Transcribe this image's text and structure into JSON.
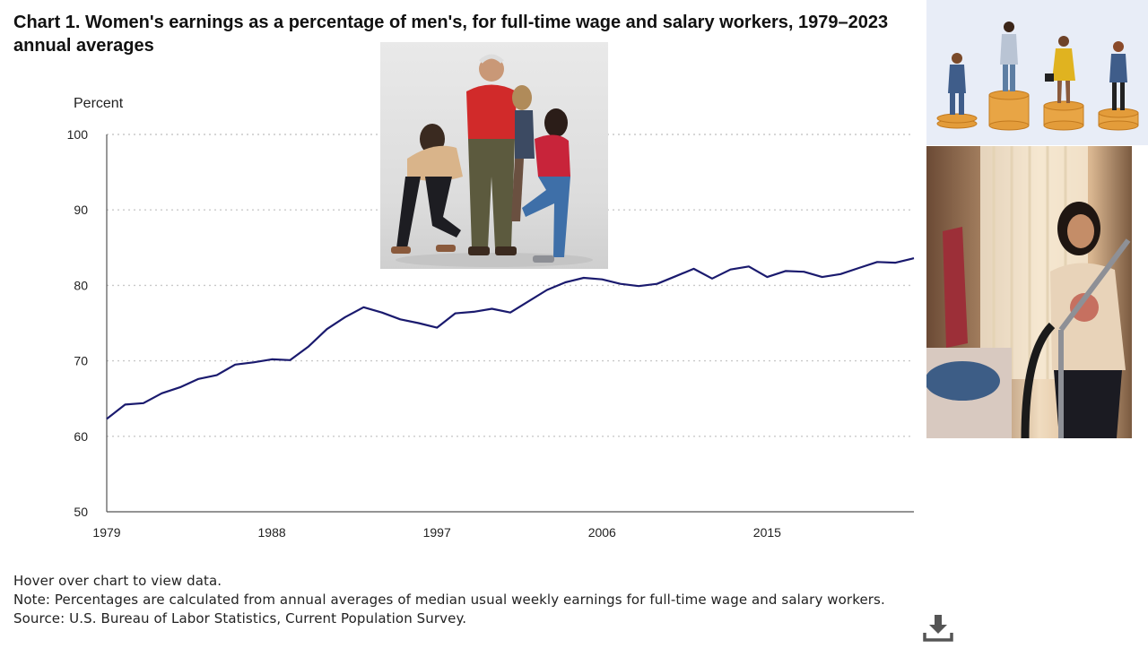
{
  "chart_data": {
    "type": "line",
    "title": "Chart 1. Women's earnings as a percentage of men's, for full-time wage and salary workers, 1979–2023 annual averages",
    "ylabel": "Percent",
    "xlabel": "",
    "ylim": [
      50,
      100
    ],
    "xlim": [
      1979,
      2023
    ],
    "y_ticks": [
      50,
      60,
      70,
      80,
      90,
      100
    ],
    "x_ticks": [
      1979,
      1988,
      1997,
      2006,
      2015
    ],
    "grid": "horizontal dotted",
    "series": [
      {
        "color": "#1a1a6e",
        "x": [
          1979,
          1980,
          1981,
          1982,
          1983,
          1984,
          1985,
          1986,
          1987,
          1988,
          1989,
          1990,
          1991,
          1992,
          1993,
          1994,
          1995,
          1996,
          1997,
          1998,
          1999,
          2000,
          2001,
          2002,
          2003,
          2004,
          2005,
          2006,
          2007,
          2008,
          2009,
          2010,
          2011,
          2012,
          2013,
          2014,
          2015,
          2016,
          2017,
          2018,
          2019,
          2020,
          2021,
          2022,
          2023
        ],
        "y": [
          62.3,
          64.2,
          64.4,
          65.7,
          66.5,
          67.6,
          68.1,
          69.5,
          69.8,
          70.2,
          70.1,
          71.9,
          74.2,
          75.8,
          77.1,
          76.4,
          75.5,
          75.0,
          74.4,
          76.3,
          76.5,
          76.9,
          76.4,
          77.9,
          79.4,
          80.4,
          81.0,
          80.8,
          80.2,
          79.9,
          80.2,
          81.2,
          82.2,
          80.9,
          82.1,
          82.5,
          81.1,
          81.9,
          81.8,
          81.1,
          81.5,
          82.3,
          83.1,
          83.0,
          83.6
        ]
      }
    ]
  },
  "notes": {
    "hover": "Hover over chart to view data.",
    "note": "Note: Percentages are calculated from annual averages of median usual weekly earnings for full-time wage and salary workers.",
    "source": "Source: U.S. Bureau of Labor Statistics, Current Population Survey."
  },
  "icons": {
    "download": "download-icon"
  },
  "colors": {
    "line": "#1a1a6e",
    "grid": "#c9c9c9"
  }
}
